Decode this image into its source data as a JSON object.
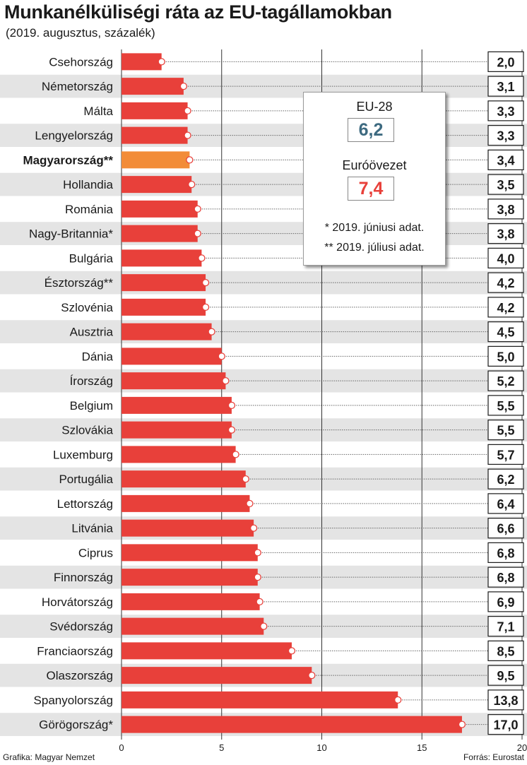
{
  "title": "Munkanélküliségi ráta az EU-tagállamokban",
  "subtitle": "(2019. augusztus, százalék)",
  "footer": {
    "credit": "Grafika: Magyar Nemzet",
    "source": "Forrás: Eurostat"
  },
  "legend": {
    "eu_label": "EU-28",
    "eu_value": "6,2",
    "eu_color": "#3d6a80",
    "euro_label": "Euróövezet",
    "euro_value": "7,4",
    "euro_color": "#e8403a",
    "note1": "* 2019. júniusi adat.",
    "note2": "** 2019. júliusi adat."
  },
  "colors": {
    "bar": "#e8403a",
    "highlight": "#f28c38",
    "stripe": "#e4e4e4",
    "grid": "#333333"
  },
  "chart_data": {
    "type": "bar",
    "orientation": "horizontal",
    "title": "Munkanélküliségi ráta az EU-tagállamokban",
    "subtitle": "(2019. augusztus, százalék)",
    "xlim": [
      0,
      20
    ],
    "xticks": [
      0,
      5,
      10,
      15,
      20
    ],
    "grid": true,
    "highlight": "Magyarország**",
    "categories": [
      "Csehország",
      "Németország",
      "Málta",
      "Lengyelország",
      "Magyarország**",
      "Hollandia",
      "Románia",
      "Nagy-Britannia*",
      "Bulgária",
      "Észtország**",
      "Szlovénia",
      "Ausztria",
      "Dánia",
      "Írország",
      "Belgium",
      "Szlovákia",
      "Luxemburg",
      "Portugália",
      "Lettország",
      "Litvánia",
      "Ciprus",
      "Finnország",
      "Horvátország",
      "Svédország",
      "Franciaország",
      "Olaszország",
      "Spanyolország",
      "Görögország*"
    ],
    "values": [
      2.0,
      3.1,
      3.3,
      3.3,
      3.4,
      3.5,
      3.8,
      3.8,
      4.0,
      4.2,
      4.2,
      4.5,
      5.0,
      5.2,
      5.5,
      5.5,
      5.7,
      6.2,
      6.4,
      6.6,
      6.8,
      6.8,
      6.9,
      7.1,
      8.5,
      9.5,
      13.8,
      17.0
    ],
    "value_labels": [
      "2,0",
      "3,1",
      "3,3",
      "3,3",
      "3,4",
      "3,5",
      "3,8",
      "3,8",
      "4,0",
      "4,2",
      "4,2",
      "4,5",
      "5,0",
      "5,2",
      "5,5",
      "5,5",
      "5,7",
      "6,2",
      "6,4",
      "6,6",
      "6,8",
      "6,8",
      "6,9",
      "7,1",
      "8,5",
      "9,5",
      "13,8",
      "17,0"
    ]
  }
}
